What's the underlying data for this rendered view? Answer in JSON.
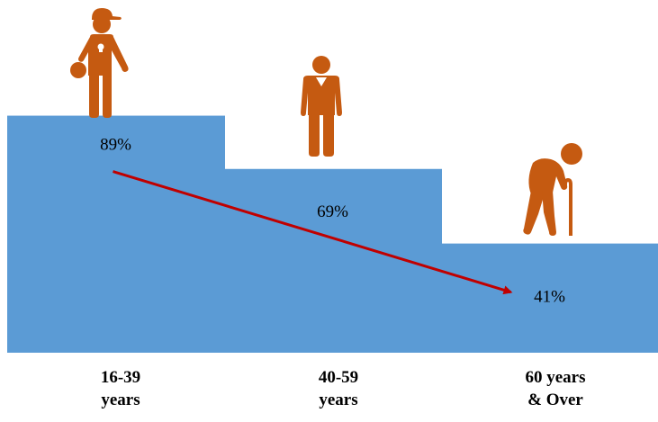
{
  "chart_data": {
    "type": "bar",
    "categories": [
      [
        "16-39",
        "years"
      ],
      [
        "40-59",
        "years"
      ],
      [
        "60 years",
        "& Over"
      ]
    ],
    "values": [
      89,
      69,
      41
    ],
    "value_labels": [
      "89%",
      "69%",
      "41%"
    ],
    "unit": "%",
    "title": "",
    "xlabel": "",
    "ylabel": "",
    "grid": false,
    "legend": "none",
    "trend_arrow": {
      "from_category": 0,
      "to_category": 2
    },
    "icons": [
      "young-person-icon",
      "middle-aged-person-icon",
      "elderly-person-with-cane-icon"
    ]
  },
  "colors": {
    "bar": "#5B9BD5",
    "icon": "#C55A11",
    "arrow": "#C00000"
  }
}
